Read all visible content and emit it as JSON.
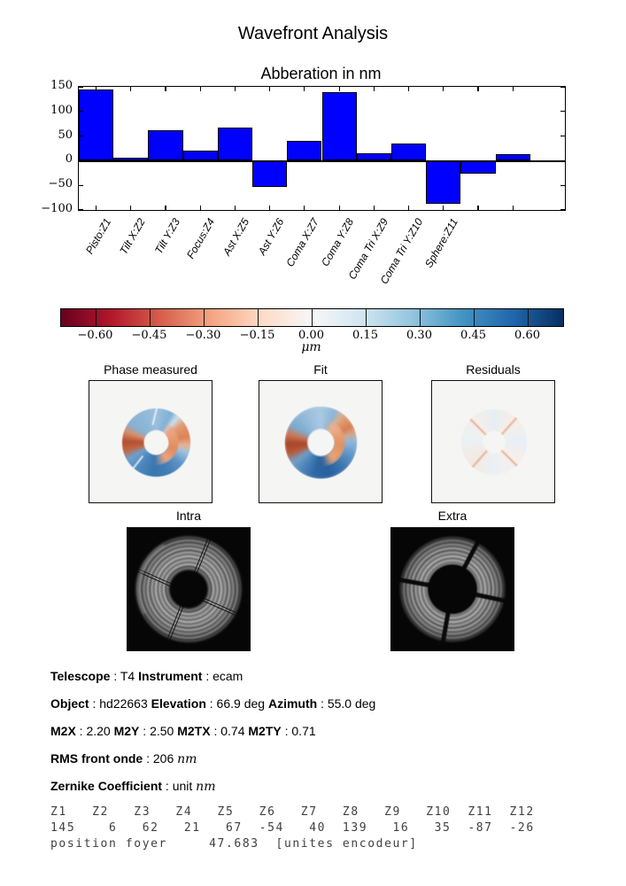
{
  "figure_title": "Wavefront Analysis",
  "chart_data": {
    "type": "bar",
    "title": "Abberation in nm",
    "categories": [
      "Pisto:Z1",
      "Tilt X:Z2",
      "Tilt Y:Z3",
      "Focus:Z4",
      "Ast X:Z5",
      "Ast Y:Z6",
      "Coma X:Z7",
      "Coma Y:Z8",
      "Coma Tri X:Z9",
      "Coma Tri Y:Z10",
      "Sphere:Z11"
    ],
    "values": [
      145,
      6,
      62,
      21,
      67,
      -54,
      40,
      139,
      16,
      35,
      -87,
      -26,
      13
    ],
    "bar_color": "#0000ff",
    "ylabel": "",
    "xlabel": "",
    "ylim": [
      -100,
      150
    ],
    "ytick_values": [
      150,
      100,
      50,
      0,
      -50,
      -100
    ],
    "ytick_labels": [
      "150",
      "100",
      "50",
      "0",
      "−50",
      "−100"
    ],
    "n_slots": 14,
    "grid": false,
    "legend": "none"
  },
  "colorbar": {
    "tick_labels": [
      "−0.60",
      "−0.45",
      "−0.30",
      "−0.15",
      "0.00",
      "0.15",
      "0.30",
      "0.45",
      "0.60"
    ],
    "tick_values": [
      -0.6,
      -0.45,
      -0.3,
      -0.15,
      0.0,
      0.15,
      0.3,
      0.45,
      0.6
    ],
    "range": [
      -0.697,
      0.697
    ],
    "unit_label": "μm",
    "colors": [
      "#67001f",
      "#b2182b",
      "#d6604d",
      "#f4a582",
      "#fddbc7",
      "#f7f7f7",
      "#d1e5f0",
      "#92c5de",
      "#4393c3",
      "#2166ac",
      "#053061"
    ]
  },
  "phase_row": {
    "panels": [
      {
        "title": "Phase measured"
      },
      {
        "title": "Fit"
      },
      {
        "title": "Residuals"
      }
    ]
  },
  "image_row": {
    "panels": [
      {
        "title": "Intra"
      },
      {
        "title": "Extra"
      }
    ]
  },
  "info": {
    "l1": [
      {
        "t": "Telescope"
      },
      {
        "t": " : T4 "
      },
      {
        "t": "Instrument"
      },
      {
        "t": " : ecam"
      }
    ],
    "l2": [
      {
        "t": "Object"
      },
      {
        "t": " : hd22663 "
      },
      {
        "t": "Elevation"
      },
      {
        "t": " : 66.9 deg "
      },
      {
        "t": "Azimuth"
      },
      {
        "t": " : 55.0 deg"
      }
    ],
    "l3": [
      {
        "t": "M2X"
      },
      {
        "t": " : 2.20 "
      },
      {
        "t": "M2Y"
      },
      {
        "t": " : 2.50 "
      },
      {
        "t": "M2TX"
      },
      {
        "t": " : 0.74 "
      },
      {
        "t": "M2TY"
      },
      {
        "t": " : 0.71"
      }
    ],
    "l4": [
      {
        "t": "RMS front onde"
      },
      {
        "t": " : 206 "
      },
      {
        "t": "nm"
      }
    ],
    "l5": [
      {
        "t": "Zernike Coefficient"
      },
      {
        "t": " : unit "
      },
      {
        "t": "nm"
      }
    ]
  },
  "zernike_table": {
    "header": "Z1   Z2   Z3   Z4   Z5   Z6   Z7   Z8   Z9   Z10  Z11  Z12",
    "values": "145    6   62   21   67  -54   40  139   16   35  -87  -26",
    "footer": "position foyer     47.683  [unites encodeur]"
  }
}
